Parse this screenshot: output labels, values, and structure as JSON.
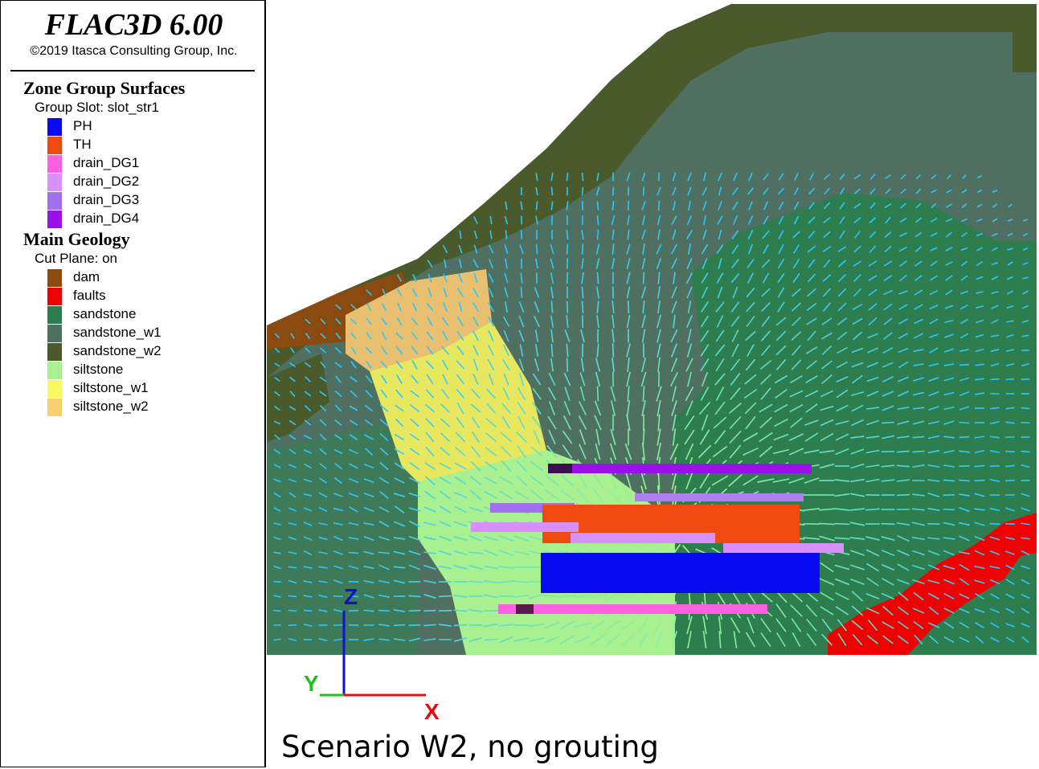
{
  "header": {
    "title": "FLAC3D 6.00",
    "copyright": "©2019 Itasca Consulting Group, Inc."
  },
  "legend": {
    "sections": [
      {
        "title": "Zone Group Surfaces",
        "subtitle": "Group Slot: slot_str1",
        "items": [
          {
            "label": "PH",
            "color": "#0a0af0"
          },
          {
            "label": "TH",
            "color": "#f04a10"
          },
          {
            "label": "drain_DG1",
            "color": "#ff60e0"
          },
          {
            "label": "drain_DG2",
            "color": "#d890ff"
          },
          {
            "label": "drain_DG3",
            "color": "#a070f0"
          },
          {
            "label": "drain_DG4",
            "color": "#9a10e8"
          }
        ]
      },
      {
        "title": "Main Geology",
        "subtitle": "Cut Plane: on",
        "items": [
          {
            "label": "dam",
            "color": "#8a4a10"
          },
          {
            "label": "faults",
            "color": "#f00000"
          },
          {
            "label": "sandstone",
            "color": "#2e7d4f"
          },
          {
            "label": "sandstone_w1",
            "color": "#4f7060"
          },
          {
            "label": "sandstone_w2",
            "color": "#4a5a2a"
          },
          {
            "label": "siltstone",
            "color": "#a8f090"
          },
          {
            "label": "siltstone_w1",
            "color": "#f8f860"
          },
          {
            "label": "siltstone_w2",
            "color": "#f8d070"
          }
        ]
      }
    ]
  },
  "axes": {
    "z": "Z",
    "x": "X",
    "y": "Y"
  },
  "caption": "Scenario W2, no grouting"
}
